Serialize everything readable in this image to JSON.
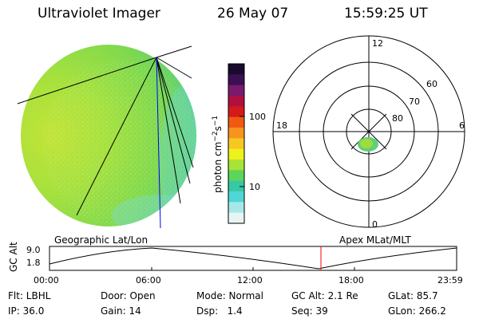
{
  "header": {
    "instrument": "Ultraviolet Imager",
    "date": "26 May 07",
    "time": "15:59:25 UT"
  },
  "colors": {
    "disk_edge": "#59d2c4",
    "disk_mid": "#8fe04c",
    "disk_core": "#b5e43a",
    "marker_line": "#ff0000",
    "meridian": "#0000ff"
  },
  "colorbar": {
    "label_main": "photon cm",
    "label_sup": "−2",
    "label_mid": "s",
    "label_sup2": "−1",
    "ticks": [
      {
        "label": "100",
        "value": 100
      },
      {
        "label": "10",
        "value": 10
      }
    ],
    "stops": [
      "#1a0a2e",
      "#3b0f54",
      "#7a1a6c",
      "#b01040",
      "#d41a1a",
      "#f05a10",
      "#f7941e",
      "#f7c823",
      "#eef21c",
      "#a8e436",
      "#5cd65a",
      "#36c9a4",
      "#4fd6d6",
      "#a6e8e8",
      "#e8f4f4"
    ]
  },
  "polar": {
    "mlt_labels": {
      "top": "12",
      "left": "18",
      "right": "6",
      "bottom": "0"
    },
    "lat_labels": [
      "60",
      "70",
      "80"
    ]
  },
  "captions": {
    "left": "Geographic Lat/Lon",
    "right": "Apex MLat/MLT"
  },
  "timeline": {
    "axis_title": "GC Alt",
    "y_top": "9.0",
    "y_bottom": "1.8",
    "x_labels": [
      "00:00",
      "06:00",
      "12:00",
      "18:00",
      "23:59"
    ],
    "current_hour": 16.0
  },
  "info": {
    "row1": [
      "Flt: LBHL",
      "Door: Open",
      "Mode: Normal",
      "GC Alt: 2.1 Re",
      "GLat: 85.7"
    ],
    "row2": [
      "IP: 36.0",
      "Gain: 14",
      "Dsp:   1.4",
      "Seq: 39",
      "GLon: 266.2"
    ]
  }
}
